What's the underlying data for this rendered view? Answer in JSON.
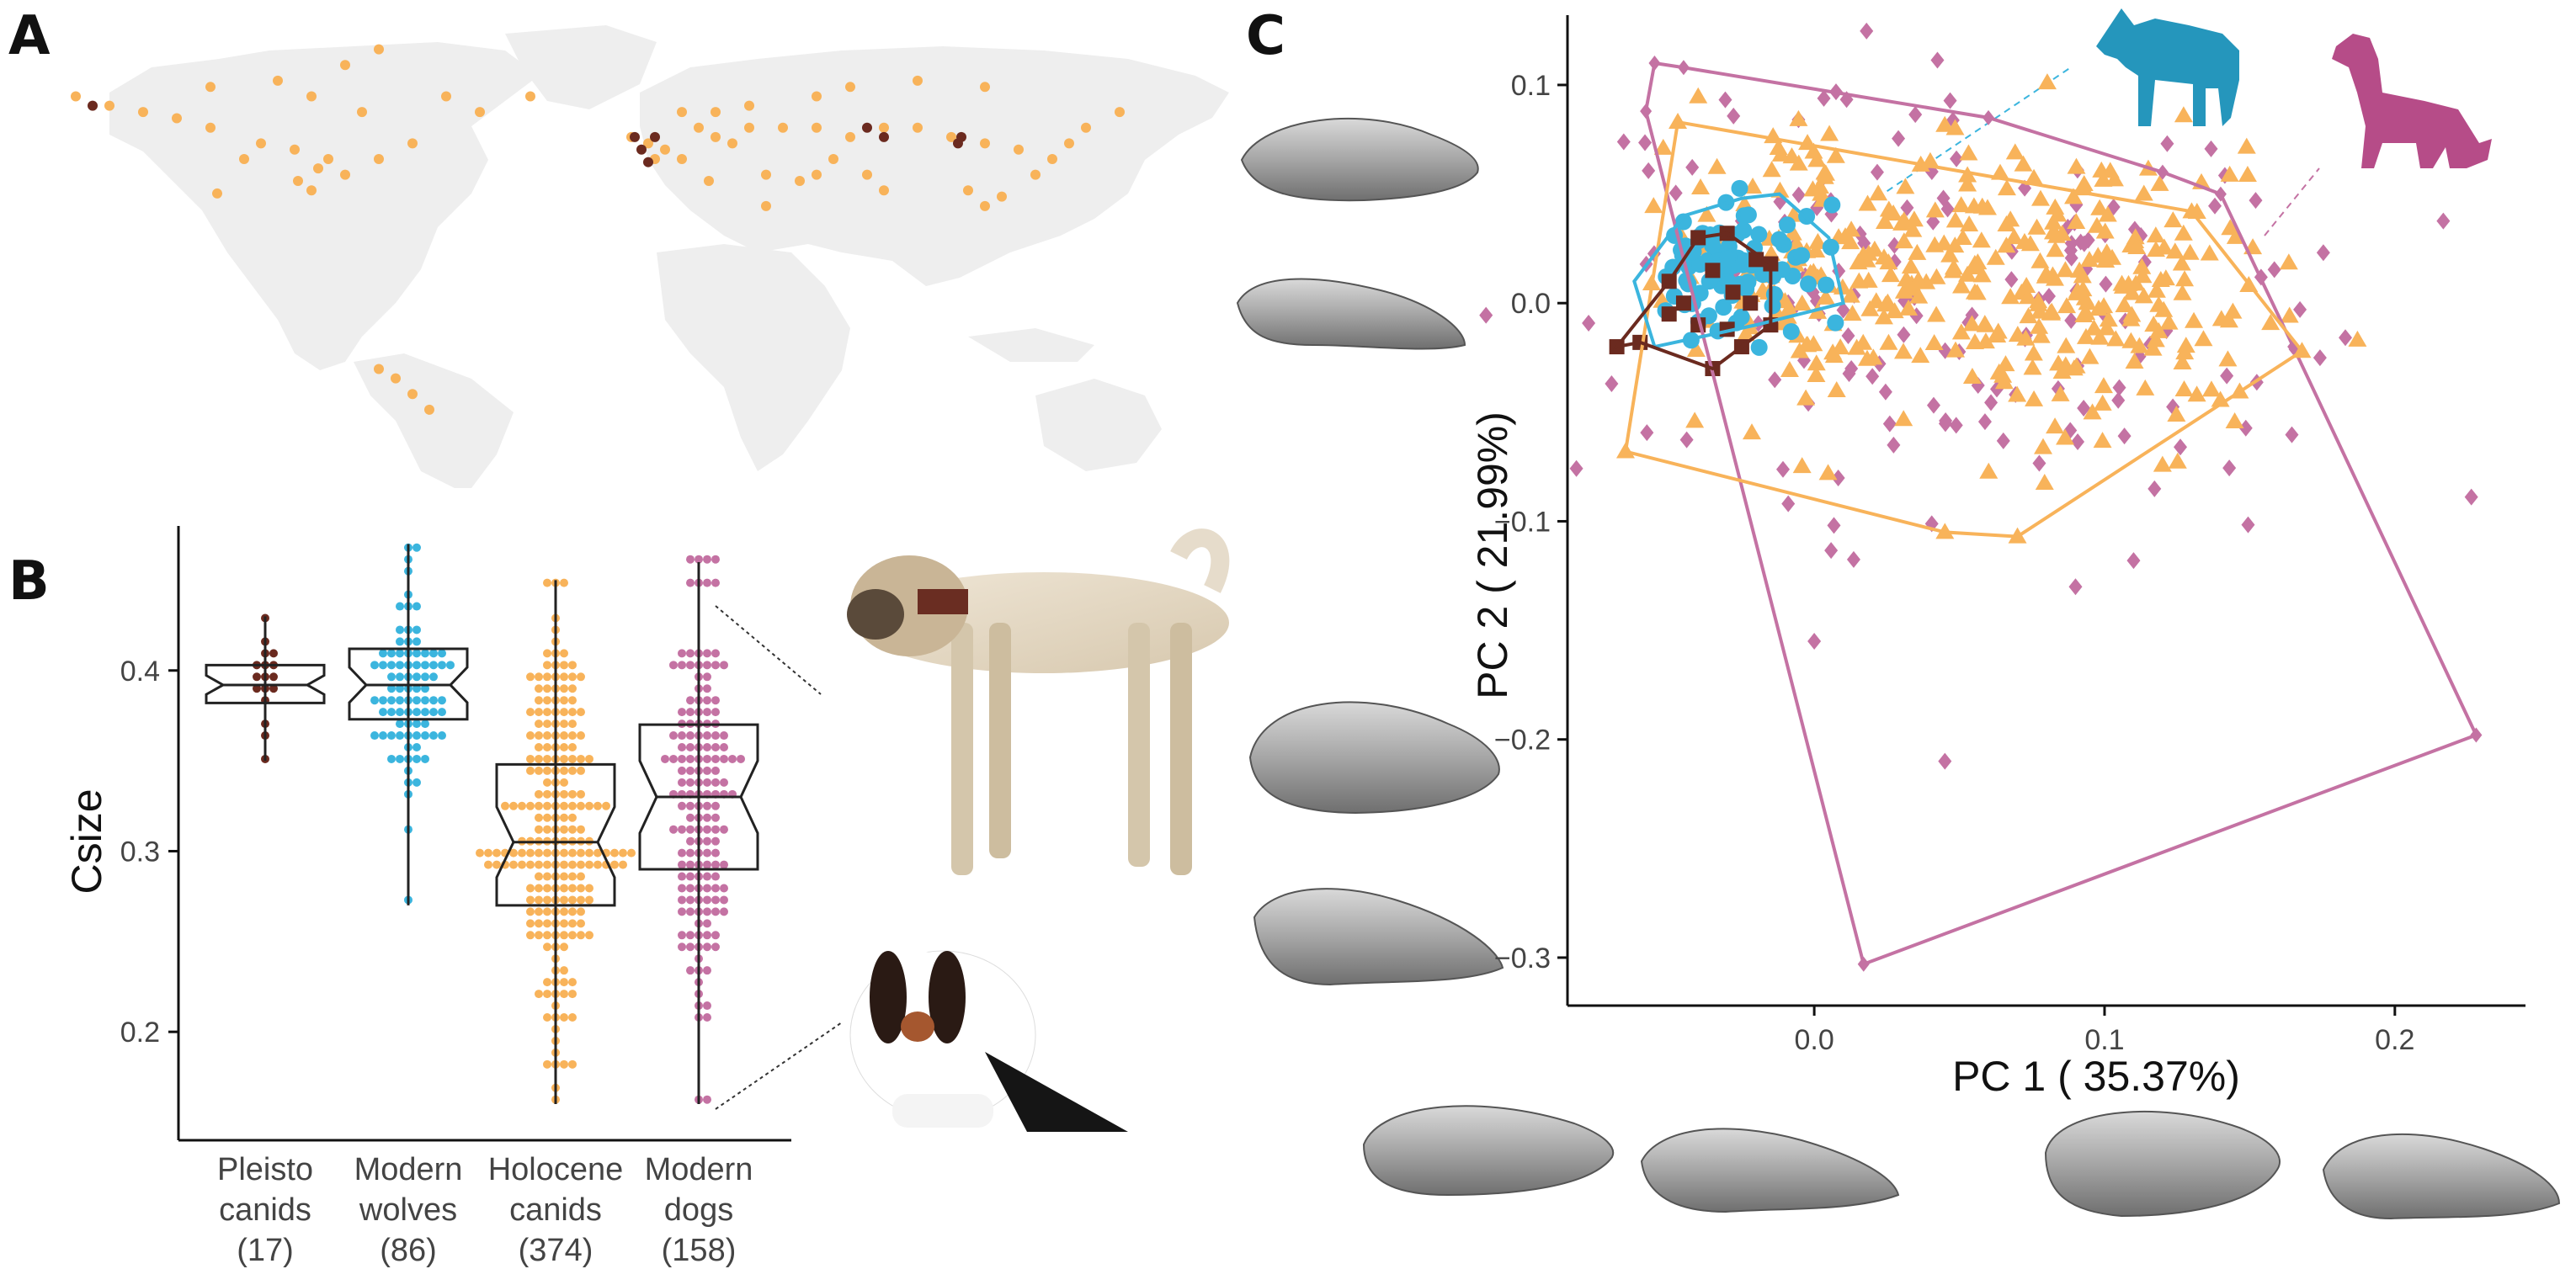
{
  "panels": {
    "a": {
      "letter": "A"
    },
    "b": {
      "letter": "B"
    },
    "c": {
      "letter": "C"
    }
  },
  "colors": {
    "pleisto": "#6b2a1f",
    "wolves": "#3bb5de",
    "holocene": "#f8b35a",
    "dogs": "#c472a3",
    "land": "#eeeeee",
    "skull": "#9a9a9a"
  },
  "icons": {
    "wolf": "wolf-silhouette-icon",
    "dog": "dog-silhouette-icon"
  },
  "chart_data": [
    {
      "type": "map",
      "panel": "A",
      "series": [
        {
          "color": "#f8b35a",
          "points": [
            [
              -160,
              65
            ],
            [
              -150,
              62
            ],
            [
              -140,
              60
            ],
            [
              -120,
              55
            ],
            [
              -105,
              50
            ],
            [
              -95,
              48
            ],
            [
              -85,
              45
            ],
            [
              -80,
              40
            ],
            [
              -90,
              35
            ],
            [
              -110,
              45
            ],
            [
              -75,
              60
            ],
            [
              -90,
              65
            ],
            [
              -100,
              70
            ],
            [
              -80,
              75
            ],
            [
              -70,
              80
            ],
            [
              -120,
              68
            ],
            [
              -130,
              58
            ],
            [
              -60,
              50
            ],
            [
              -70,
              45
            ],
            [
              -88,
              42
            ],
            [
              -94,
              38
            ],
            [
              -118,
              34
            ],
            [
              -65,
              -25
            ],
            [
              -60,
              -30
            ],
            [
              -55,
              -35
            ],
            [
              -70,
              -22
            ],
            [
              5,
              52
            ],
            [
              10,
              50
            ],
            [
              15,
              48
            ],
            [
              20,
              45
            ],
            [
              25,
              55
            ],
            [
              30,
              52
            ],
            [
              35,
              50
            ],
            [
              40,
              55
            ],
            [
              50,
              55
            ],
            [
              60,
              55
            ],
            [
              70,
              52
            ],
            [
              80,
              55
            ],
            [
              90,
              55
            ],
            [
              100,
              52
            ],
            [
              110,
              50
            ],
            [
              120,
              48
            ],
            [
              130,
              45
            ],
            [
              135,
              50
            ],
            [
              140,
              55
            ],
            [
              45,
              40
            ],
            [
              55,
              38
            ],
            [
              60,
              40
            ],
            [
              65,
              45
            ],
            [
              75,
              40
            ],
            [
              80,
              35
            ],
            [
              105,
              35
            ],
            [
              110,
              30
            ],
            [
              115,
              33
            ],
            [
              125,
              40
            ],
            [
              30,
              60
            ],
            [
              40,
              62
            ],
            [
              60,
              65
            ],
            [
              70,
              68
            ],
            [
              90,
              70
            ],
            [
              110,
              68
            ],
            [
              150,
              60
            ],
            [
              -25,
              65
            ],
            [
              -40,
              60
            ],
            [
              -50,
              65
            ],
            [
              20,
              60
            ],
            [
              12,
              45
            ],
            [
              28,
              38
            ],
            [
              45,
              30
            ]
          ]
        },
        {
          "color": "#6b2a1f",
          "points": [
            [
              -155,
              62
            ],
            [
              8,
              48
            ],
            [
              10,
              44
            ],
            [
              12,
              52
            ],
            [
              75,
              55
            ],
            [
              80,
              52
            ],
            [
              102,
              50
            ],
            [
              103,
              52
            ],
            [
              6,
              52
            ]
          ]
        }
      ]
    },
    {
      "type": "box",
      "panel": "B",
      "ylabel": "Csize",
      "ylim": [
        0.14,
        0.48
      ],
      "yticks": [
        0.2,
        0.3,
        0.4
      ],
      "categories": [
        "Pleisto canids (17)",
        "Modern wolves (86)",
        "Holocene canids (374)",
        "Modern dogs (158)"
      ],
      "category_lines": [
        [
          "Pleisto",
          "canids",
          "(17)"
        ],
        [
          "Modern",
          "wolves",
          "(86)"
        ],
        [
          "Holocene",
          "canids",
          "(374)"
        ],
        [
          "Modern",
          "dogs",
          "(158)"
        ]
      ],
      "series": [
        {
          "name": "Pleisto canids",
          "color": "#6b2a1f",
          "n": 17,
          "min": 0.35,
          "q1": 0.382,
          "median": 0.392,
          "q3": 0.403,
          "max": 0.43
        },
        {
          "name": "Modern wolves",
          "color": "#3bb5de",
          "n": 86,
          "min": 0.27,
          "q1": 0.373,
          "median": 0.392,
          "q3": 0.412,
          "max": 0.47
        },
        {
          "name": "Holocene canids",
          "color": "#f8b35a",
          "n": 374,
          "min": 0.16,
          "q1": 0.27,
          "median": 0.305,
          "q3": 0.348,
          "max": 0.45
        },
        {
          "name": "Modern dogs",
          "color": "#c472a3",
          "n": 158,
          "min": 0.16,
          "q1": 0.29,
          "median": 0.33,
          "q3": 0.37,
          "max": 0.46
        }
      ]
    },
    {
      "type": "scatter",
      "panel": "C",
      "xlabel": "PC 1 ( 35.37%)",
      "ylabel": "PC 2 ( 21.99%)",
      "xlim": [
        -0.085,
        0.245
      ],
      "ylim": [
        -0.322,
        0.132
      ],
      "xticks": [
        0.0,
        0.1,
        0.2
      ],
      "yticks": [
        -0.3,
        -0.2,
        -0.1,
        0.0,
        0.1
      ],
      "hulls": [
        {
          "series": "dogs",
          "color": "#c472a3",
          "points": [
            [
              -0.055,
              0.11
            ],
            [
              -0.045,
              0.108
            ],
            [
              0.06,
              0.085
            ],
            [
              0.12,
              0.06
            ],
            [
              0.14,
              0.05
            ],
            [
              0.165,
              -0.02
            ],
            [
              0.228,
              -0.198
            ],
            [
              0.017,
              -0.303
            ],
            [
              -0.058,
              0.088
            ]
          ]
        },
        {
          "series": "holocene",
          "color": "#f8b35a",
          "points": [
            [
              -0.047,
              0.083
            ],
            [
              0.13,
              0.042
            ],
            [
              0.168,
              -0.022
            ],
            [
              0.07,
              -0.107
            ],
            [
              0.045,
              -0.105
            ],
            [
              -0.065,
              -0.068
            ]
          ]
        },
        {
          "series": "wolves",
          "color": "#3bb5de",
          "points": [
            [
              -0.025,
              0.048
            ],
            [
              -0.012,
              0.05
            ],
            [
              0.005,
              0.03
            ],
            [
              0.01,
              0.0
            ],
            [
              -0.02,
              -0.01
            ],
            [
              -0.055,
              -0.02
            ],
            [
              -0.062,
              0.01
            ],
            [
              -0.045,
              0.04
            ]
          ]
        },
        {
          "series": "pleisto",
          "color": "#6b2a1f",
          "points": [
            [
              -0.068,
              -0.02
            ],
            [
              -0.05,
              0.01
            ],
            [
              -0.04,
              0.03
            ],
            [
              -0.03,
              0.032
            ],
            [
              -0.015,
              0.018
            ],
            [
              -0.015,
              -0.01
            ],
            [
              -0.025,
              -0.02
            ],
            [
              -0.035,
              -0.03
            ],
            [
              -0.06,
              -0.018
            ]
          ]
        }
      ],
      "series": [
        {
          "name": "Pleisto canids",
          "color": "#6b2a1f",
          "shape": "square",
          "points": [
            [
              -0.068,
              -0.02
            ],
            [
              -0.05,
              0.01
            ],
            [
              -0.04,
              0.03
            ],
            [
              -0.03,
              0.032
            ],
            [
              -0.015,
              0.018
            ],
            [
              -0.015,
              -0.01
            ],
            [
              -0.025,
              -0.02
            ],
            [
              -0.035,
              -0.03
            ],
            [
              -0.06,
              -0.018
            ],
            [
              -0.045,
              0.0
            ],
            [
              -0.035,
              0.015
            ],
            [
              -0.028,
              0.005
            ],
            [
              -0.022,
              0.0
            ],
            [
              -0.04,
              -0.01
            ],
            [
              -0.02,
              0.02
            ],
            [
              -0.05,
              -0.005
            ],
            [
              -0.03,
              -0.012
            ]
          ]
        },
        {
          "name": "Modern wolves",
          "color": "#3bb5de",
          "shape": "circle",
          "points": "generate:wolves"
        },
        {
          "name": "Holocene canids",
          "color": "#f8b35a",
          "shape": "triangle",
          "points": "generate:holocene"
        },
        {
          "name": "Modern dogs",
          "color": "#c472a3",
          "shape": "diamond",
          "points": "generate:dogs"
        }
      ]
    }
  ]
}
